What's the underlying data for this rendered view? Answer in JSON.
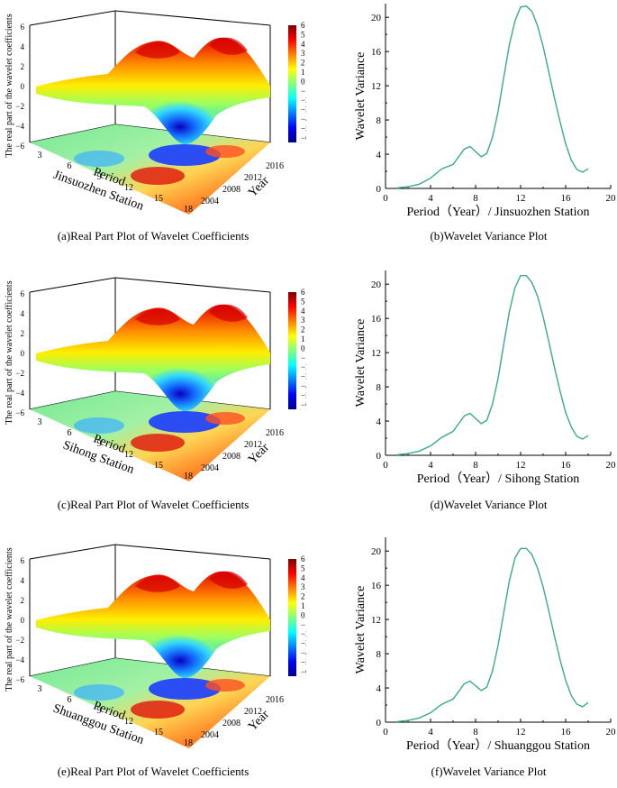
{
  "colorbar": {
    "ticks": [
      "6",
      "5",
      "4",
      "3",
      "2",
      "1",
      "0",
      "−1",
      "−2",
      "−3",
      "−4",
      "−5",
      "−6"
    ],
    "colors": [
      "#00008b",
      "#0000ff",
      "#0080ff",
      "#00ffff",
      "#80ff80",
      "#ffff00",
      "#ff8000",
      "#ff0000",
      "#800000"
    ]
  },
  "surface_axes": {
    "zlabel": "The real part of the wavelet coefficients",
    "zticks": [
      "6",
      "4",
      "2",
      "0",
      "−2",
      "−4",
      "−6"
    ],
    "period_ticks": [
      "3",
      "6",
      "9",
      "12",
      "15",
      "18"
    ],
    "year_ticks": [
      "2016",
      "2012",
      "2008",
      "2004"
    ],
    "period_label": "Period",
    "year_label": "Year"
  },
  "panels": [
    {
      "surface_station": "Jinsuozhen Station",
      "surface_caption": "(a)Real Part Plot of Wavelet Coefficients",
      "variance_caption": "(b)Wavelet Variance Plot",
      "variance_xlabel": "Period（Year）/ Jinsuozhen Station"
    },
    {
      "surface_station": "Sihong Station",
      "surface_caption": "(c)Real Part Plot of Wavelet Coefficients",
      "variance_caption": "(d)Wavelet Variance Plot",
      "variance_xlabel": "Period（Year）/ Sihong Station"
    },
    {
      "surface_station": "Shuanggou Station",
      "surface_caption": "(e)Real Part Plot of Wavelet Coefficients",
      "variance_caption": "(f)Wavelet Variance Plot",
      "variance_xlabel": "Period（Year）/ Shuanggou Station"
    }
  ],
  "chart_data": [
    {
      "type": "line",
      "ylabel": "Wavelet Variance",
      "xlim": [
        0,
        20
      ],
      "ylim": [
        0,
        21.6
      ],
      "xticks": [
        0,
        4,
        8,
        12,
        16,
        20
      ],
      "yticks": [
        0,
        4,
        8,
        12,
        16,
        20
      ],
      "line_color": "#3aaa8f",
      "x": [
        1,
        2,
        3,
        4,
        5,
        6,
        7,
        7.5,
        8.5,
        9,
        9.5,
        10,
        10.5,
        11,
        11.5,
        12,
        12.5,
        13,
        13.5,
        14,
        14.5,
        15,
        15.5,
        16,
        16.5,
        17,
        17.5,
        18
      ],
      "y": [
        0.05,
        0.2,
        0.5,
        1.2,
        2.3,
        2.8,
        4.6,
        4.9,
        3.7,
        4.1,
        6,
        9,
        13,
        16.8,
        19.6,
        21.2,
        21.3,
        20.7,
        19,
        16.6,
        13.6,
        10.6,
        7.8,
        5.2,
        3.3,
        2.2,
        1.9,
        2.3
      ]
    },
    {
      "type": "line",
      "ylabel": "Wavelet Variance",
      "xlim": [
        0,
        20
      ],
      "ylim": [
        0,
        21.6
      ],
      "xticks": [
        0,
        4,
        8,
        12,
        16,
        20
      ],
      "yticks": [
        0,
        4,
        8,
        12,
        16,
        20
      ],
      "line_color": "#3aaa8f",
      "x": [
        1,
        2,
        3,
        4,
        5,
        6,
        7,
        7.5,
        8.5,
        9,
        9.5,
        10,
        10.5,
        11,
        11.5,
        12,
        12.5,
        13,
        13.5,
        14,
        14.5,
        15,
        15.5,
        16,
        16.5,
        17,
        17.5,
        18
      ],
      "y": [
        0.05,
        0.2,
        0.5,
        1.1,
        2.1,
        2.8,
        4.6,
        4.9,
        3.7,
        4.1,
        6,
        9,
        13,
        16.8,
        19.6,
        21,
        21,
        20.2,
        18.6,
        16.2,
        13.3,
        10.3,
        7.5,
        5,
        3.3,
        2.2,
        1.9,
        2.3
      ]
    },
    {
      "type": "line",
      "ylabel": "Wavelet Variance",
      "xlim": [
        0,
        20
      ],
      "ylim": [
        0,
        21.6
      ],
      "xticks": [
        0,
        4,
        8,
        12,
        16,
        20
      ],
      "yticks": [
        0,
        4,
        8,
        12,
        16,
        20
      ],
      "line_color": "#3aaa8f",
      "x": [
        1,
        2,
        3,
        4,
        5,
        6,
        7,
        7.5,
        8.5,
        9,
        9.5,
        10,
        10.5,
        11,
        11.5,
        12,
        12.5,
        13,
        13.5,
        14,
        14.5,
        15,
        15.5,
        16,
        16.5,
        17,
        17.5,
        18
      ],
      "y": [
        0.05,
        0.2,
        0.5,
        1.1,
        2.1,
        2.7,
        4.5,
        4.8,
        3.7,
        4.1,
        6,
        9,
        12.8,
        16.5,
        19.2,
        20.3,
        20.3,
        19.6,
        18,
        15.8,
        13,
        10.1,
        7.3,
        4.9,
        3.1,
        2.1,
        1.8,
        2.3
      ]
    }
  ]
}
